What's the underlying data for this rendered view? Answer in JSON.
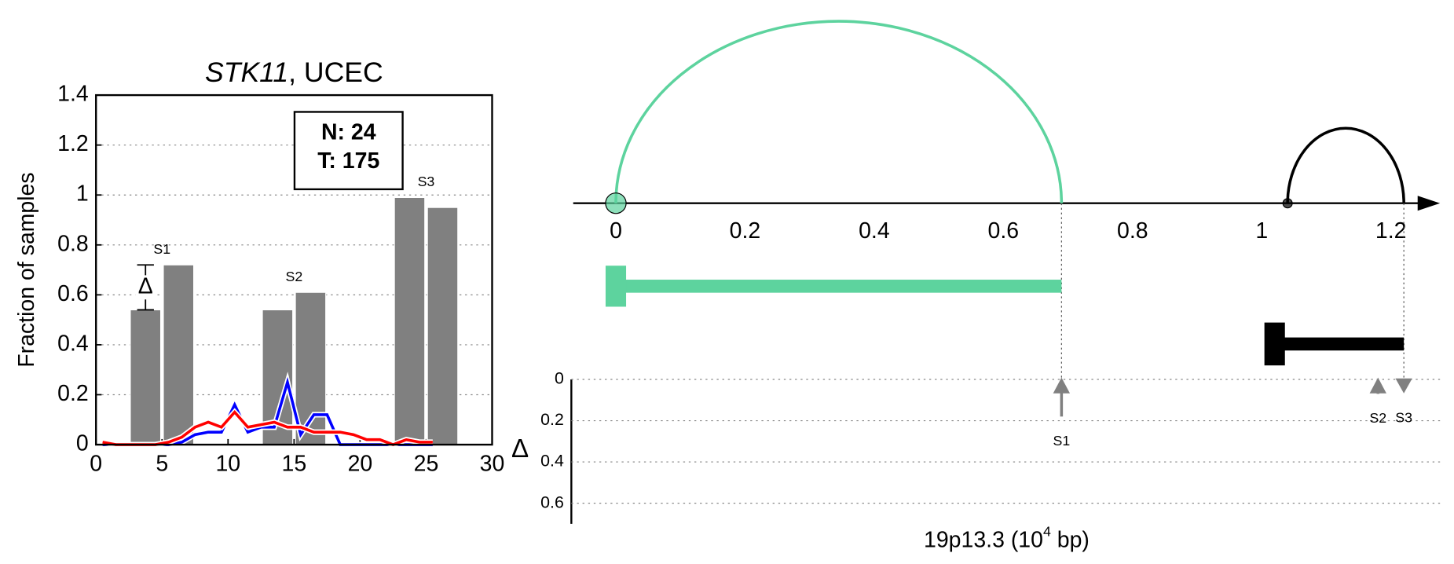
{
  "chart_data": [
    {
      "type": "bar",
      "title_gene": "STK11",
      "title_rest": ", UCEC",
      "ylabel": "Fraction of samples",
      "xlim": [
        0,
        30
      ],
      "xticks": [
        0,
        5,
        10,
        15,
        20,
        25,
        30
      ],
      "ylim": [
        0,
        1.4
      ],
      "yticks": [
        0.0,
        0.2,
        0.4,
        0.6,
        0.8,
        1.0,
        1.2,
        1.4
      ],
      "grid": true,
      "x": [
        3.75,
        6.25,
        13.75,
        16.25,
        23.75,
        26.25
      ],
      "values": [
        0.54,
        0.72,
        0.54,
        0.61,
        0.99,
        0.95
      ],
      "color": "#808080",
      "group_labels": [
        "S1",
        "S2",
        "S3"
      ],
      "delta_label": "Δ",
      "annotation_box": [
        "N: 24",
        "T: 175"
      ],
      "series": [
        {
          "color": "#0000ff",
          "x": [
            0.5,
            1.5,
            2.5,
            3.5,
            4.5,
            5.5,
            6.5,
            7.5,
            8.5,
            9.5,
            10.5,
            11.5,
            12.5,
            13.5,
            14.5,
            15.5,
            16.5,
            17.5,
            18.5,
            19.5,
            20.5,
            21.5,
            22.5,
            23.5,
            24.5,
            25.5
          ],
          "values": [
            0,
            0,
            0,
            0,
            0,
            0,
            0.01,
            0.04,
            0.05,
            0.05,
            0.16,
            0.05,
            0.07,
            0.07,
            0.25,
            0.04,
            0.12,
            0.12,
            0,
            0,
            0,
            0,
            0,
            0,
            0,
            0
          ]
        },
        {
          "color": "#ff0000",
          "x": [
            0.5,
            1.5,
            2.5,
            3.5,
            4.5,
            5.5,
            6.5,
            7.5,
            8.5,
            9.5,
            10.5,
            11.5,
            12.5,
            13.5,
            14.5,
            15.5,
            16.5,
            17.5,
            18.5,
            19.5,
            20.5,
            21.5,
            22.5,
            23.5,
            24.5,
            25.5
          ],
          "values": [
            0.01,
            0,
            0,
            0,
            0,
            0.01,
            0.03,
            0.07,
            0.09,
            0.07,
            0.13,
            0.07,
            0.08,
            0.09,
            0.07,
            0.07,
            0.05,
            0.05,
            0.05,
            0.04,
            0.02,
            0.02,
            0,
            0.02,
            0.01,
            0.01
          ]
        }
      ]
    },
    {
      "type": "arc",
      "xlim": [
        -0.066,
        1.276
      ],
      "xticks": [
        0.0,
        0.2,
        0.4,
        0.6,
        0.8,
        1.0,
        1.2
      ],
      "arcs": [
        {
          "start": 0.0,
          "end": 0.69,
          "color": "#5dd39e",
          "marker_size": 11
        },
        {
          "start": 1.04,
          "end": 1.22,
          "color": "#000000",
          "marker_size": 5
        }
      ],
      "genes": [
        {
          "start": 0.0,
          "end": 0.69,
          "color": "#5dd39e"
        },
        {
          "start": 1.02,
          "end": 1.22,
          "color": "#000000"
        }
      ]
    },
    {
      "type": "delta",
      "ylabel": "Δ",
      "ylim": [
        0,
        0.7
      ],
      "yticks": [
        0.0,
        0.2,
        0.4,
        0.6
      ],
      "grid": true,
      "xlabel_main": "19p13.3 (10",
      "xlabel_sup": "4",
      "xlabel_tail": " bp)",
      "categories": [
        "S1",
        "S2",
        "S3"
      ],
      "x": [
        0.69,
        1.18,
        1.22
      ],
      "values": [
        0.18,
        0.07,
        -0.04
      ],
      "color": "#808080"
    }
  ]
}
